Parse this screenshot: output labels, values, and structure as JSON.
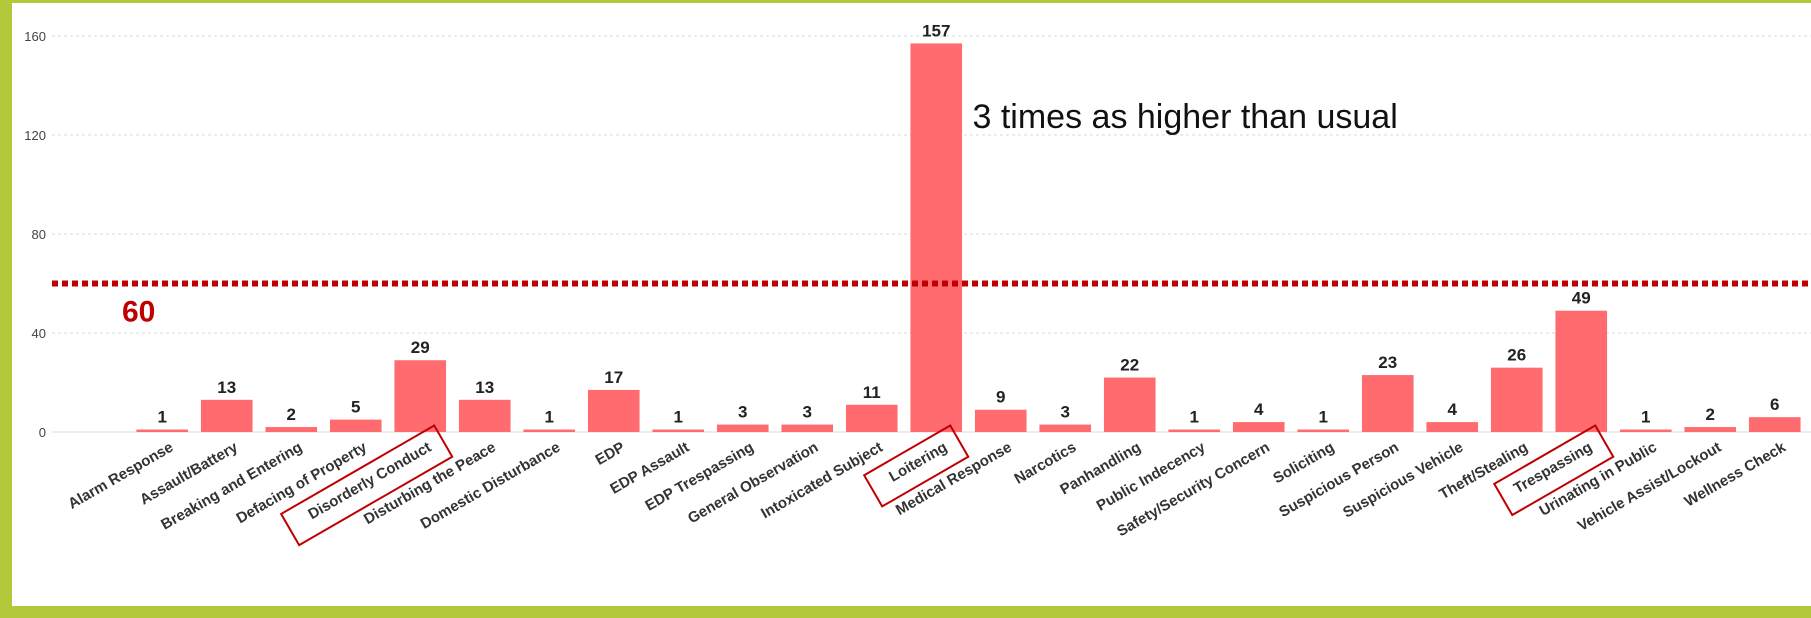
{
  "chart_data": {
    "type": "bar",
    "title": "",
    "xlabel": "",
    "ylabel": "",
    "ylim": [
      0,
      160
    ],
    "yticks": [
      0,
      40,
      80,
      120,
      160
    ],
    "grid": true,
    "categories": [
      "Alarm Response",
      "Assault/Battery",
      "Breaking and Entering",
      "Defacing of Property",
      "Disorderly Conduct",
      "Disturbing the Peace",
      "Domestic Disturbance",
      "EDP",
      "EDP Assault",
      "EDP Trespassing",
      "General Observation",
      "Intoxicated Subject",
      "Loitering",
      "Medical Response",
      "Narcotics",
      "Panhandling",
      "Public Indecency",
      "Safety/Security Concern",
      "Soliciting",
      "Suspicious Person",
      "Suspicious Vehicle",
      "Theft/Stealing",
      "Trespassing",
      "Urinating in Public",
      "Vehicle Assist/Lockout",
      "Wellness Check"
    ],
    "values": [
      1,
      13,
      2,
      5,
      29,
      13,
      1,
      17,
      1,
      3,
      3,
      11,
      157,
      9,
      3,
      22,
      1,
      4,
      1,
      23,
      4,
      26,
      49,
      1,
      2,
      6
    ],
    "highlighted": [
      "Disorderly Conduct",
      "Loitering",
      "Trespassing"
    ],
    "threshold": 60,
    "threshold_label": "60",
    "annotation": "3 times as higher than usual",
    "colors": {
      "bar": "#ff6b6f",
      "threshold": "#c00000",
      "highlight_box": "#c00000",
      "frame": "#b5c73a",
      "grid": "#d9d9d9"
    }
  }
}
